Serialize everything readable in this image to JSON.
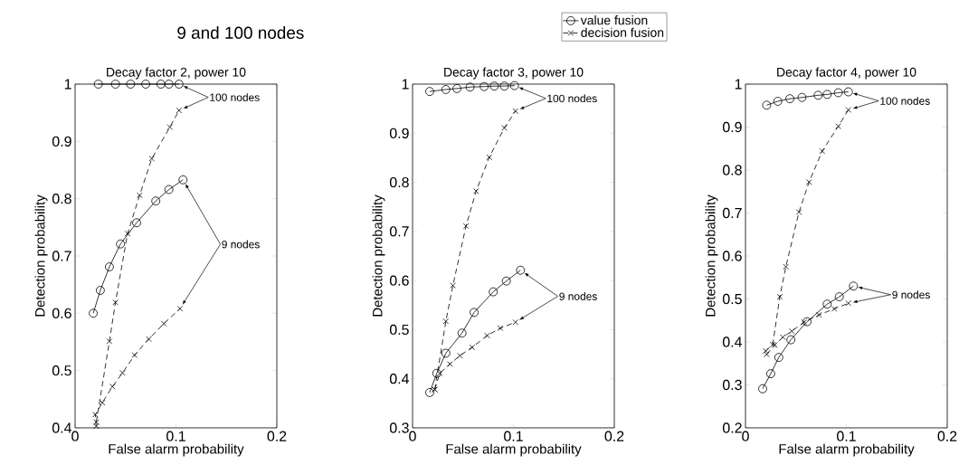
{
  "chart_data": [
    {
      "type": "line",
      "title": "9 and 100 nodes",
      "subtitle": "Decay factor 2, power 10",
      "xlabel": "False alarm probability",
      "ylabel": "Detection probability",
      "xlim": [
        0,
        0.2
      ],
      "xticks": [
        0,
        0.1,
        0.2
      ],
      "ylim": [
        0.4,
        1
      ],
      "yticks": [
        0.4,
        0.5,
        0.6,
        0.7,
        0.8,
        0.9,
        1
      ],
      "grid": false,
      "series": [
        {
          "color": "#000000",
          "marker": "circle",
          "line_style": "solid",
          "x": [
            0.018,
            0.025,
            0.034,
            0.045,
            0.061,
            0.08,
            0.093,
            0.107
          ],
          "values": [
            0.6,
            0.64,
            0.681,
            0.721,
            0.758,
            0.796,
            0.816,
            0.833
          ]
        },
        {
          "color": "#000000",
          "marker": "cross",
          "line_style": "dashed",
          "x": [
            0.021,
            0.02,
            0.027,
            0.037,
            0.047,
            0.059,
            0.073,
            0.088,
            0.104
          ],
          "values": [
            0.403,
            0.423,
            0.444,
            0.472,
            0.496,
            0.527,
            0.555,
            0.582,
            0.608
          ]
        },
        {
          "color": "#000000",
          "marker": "circle",
          "line_style": "solid",
          "x": [
            0.023,
            0.04,
            0.055,
            0.07,
            0.085,
            0.093,
            0.103
          ],
          "values": [
            1,
            1,
            1,
            1,
            1,
            1,
            1
          ]
        },
        {
          "color": "#000000",
          "marker": "cross",
          "line_style": "dashed",
          "x": [
            0.021,
            0.034,
            0.04,
            0.052,
            0.064,
            0.076,
            0.094,
            0.103
          ],
          "values": [
            0.41,
            0.551,
            0.619,
            0.739,
            0.806,
            0.87,
            0.925,
            0.954
          ]
        }
      ],
      "annotations": [
        "100 nodes",
        "9 nodes"
      ]
    },
    {
      "type": "line",
      "title": "Decay factor 3, power 10",
      "xlabel": "False alarm probability",
      "ylabel": "Detection probability",
      "xlim": [
        0,
        0.2
      ],
      "xticks": [
        0,
        0.1,
        0.2
      ],
      "ylim": [
        0.3,
        1
      ],
      "yticks": [
        0.3,
        0.4,
        0.5,
        0.6,
        0.7,
        0.8,
        0.9,
        1
      ],
      "grid": false,
      "legend": "top right",
      "series": [
        {
          "name": "value fusion",
          "color": "#000000",
          "marker": "circle",
          "line_style": "solid",
          "x": [
            0.017,
            0.024,
            0.033,
            0.049,
            0.061,
            0.08,
            0.093,
            0.107
          ],
          "values": [
            0.372,
            0.411,
            0.452,
            0.493,
            0.535,
            0.577,
            0.599,
            0.621
          ]
        },
        {
          "name": "decision fusion",
          "color": "#000000",
          "marker": "cross",
          "line_style": "dashed",
          "x": [
            0.022,
            0.027,
            0.037,
            0.047,
            0.059,
            0.074,
            0.087,
            0.102
          ],
          "values": [
            0.378,
            0.411,
            0.43,
            0.447,
            0.464,
            0.488,
            0.503,
            0.515
          ]
        },
        {
          "color": "#000000",
          "marker": "circle",
          "line_style": "solid",
          "x": [
            0.017,
            0.033,
            0.044,
            0.057,
            0.071,
            0.081,
            0.091,
            0.101
          ],
          "values": [
            0.985,
            0.989,
            0.991,
            0.994,
            0.995,
            0.996,
            0.996,
            0.997
          ]
        },
        {
          "color": "#000000",
          "marker": "cross",
          "line_style": "dashed",
          "x": [
            0.022,
            0.033,
            0.04,
            0.053,
            0.063,
            0.076,
            0.091,
            0.102
          ],
          "values": [
            0.378,
            0.517,
            0.59,
            0.711,
            0.782,
            0.851,
            0.911,
            0.945
          ]
        }
      ],
      "annotations": [
        "100 nodes",
        "9 nodes"
      ]
    },
    {
      "type": "line",
      "title": "Decay factor 4, power 10",
      "xlabel": "False alarm probability",
      "ylabel": "Detection probability",
      "xlim": [
        0,
        0.2
      ],
      "xticks": [
        0,
        0.1,
        0.2
      ],
      "ylim": [
        0.2,
        1
      ],
      "yticks": [
        0.2,
        0.3,
        0.4,
        0.5,
        0.6,
        0.7,
        0.8,
        0.9,
        1
      ],
      "grid": false,
      "series": [
        {
          "color": "#000000",
          "marker": "circle",
          "line_style": "solid",
          "x": [
            0.017,
            0.025,
            0.033,
            0.045,
            0.061,
            0.081,
            0.093,
            0.107
          ],
          "values": [
            0.291,
            0.326,
            0.364,
            0.405,
            0.447,
            0.488,
            0.505,
            0.53
          ]
        },
        {
          "color": "#000000",
          "marker": "cross",
          "line_style": "dashed",
          "x": [
            0.021,
            0.029,
            0.037,
            0.046,
            0.058,
            0.073,
            0.088,
            0.102
          ],
          "values": [
            0.371,
            0.393,
            0.411,
            0.425,
            0.446,
            0.463,
            0.477,
            0.49
          ]
        },
        {
          "color": "#000000",
          "marker": "circle",
          "line_style": "solid",
          "x": [
            0.021,
            0.032,
            0.044,
            0.056,
            0.072,
            0.081,
            0.092,
            0.102
          ],
          "values": [
            0.951,
            0.96,
            0.966,
            0.969,
            0.974,
            0.976,
            0.98,
            0.982
          ]
        },
        {
          "color": "#000000",
          "marker": "cross",
          "line_style": "dashed",
          "x": [
            0.02,
            0.027,
            0.034,
            0.04,
            0.053,
            0.063,
            0.076,
            0.092,
            0.102
          ],
          "values": [
            0.379,
            0.394,
            0.505,
            0.575,
            0.702,
            0.772,
            0.844,
            0.902,
            0.94
          ]
        }
      ],
      "annotations": [
        "100 nodes",
        "9 nodes"
      ]
    }
  ]
}
